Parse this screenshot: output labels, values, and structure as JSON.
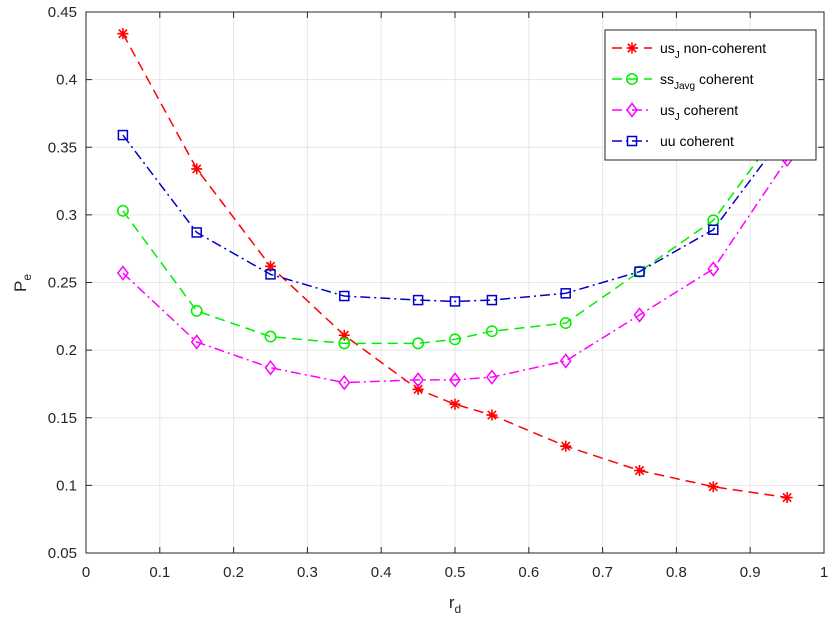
{
  "chart_data": {
    "type": "line",
    "xlabel": "r",
    "xlabel_sub": "d",
    "ylabel": "P",
    "ylabel_sub": "e",
    "xlim": [
      0,
      1
    ],
    "ylim": [
      0.05,
      0.45
    ],
    "xticks": [
      0,
      0.1,
      0.2,
      0.3,
      0.4,
      0.5,
      0.6,
      0.7,
      0.8,
      0.9,
      1
    ],
    "xtick_labels": [
      "0",
      "0.1",
      "0.2",
      "0.3",
      "0.4",
      "0.5",
      "0.6",
      "0.7",
      "0.8",
      "0.9",
      "1"
    ],
    "yticks": [
      0.05,
      0.1,
      0.15,
      0.2,
      0.25,
      0.3,
      0.35,
      0.4,
      0.45
    ],
    "ytick_labels": [
      "0.05",
      "0.1",
      "0.15",
      "0.2",
      "0.25",
      "0.3",
      "0.35",
      "0.4",
      "0.45"
    ],
    "grid": true,
    "legend_position": "top-right",
    "x": [
      0.05,
      0.15,
      0.25,
      0.35,
      0.45,
      0.5,
      0.55,
      0.65,
      0.75,
      0.85,
      0.95
    ],
    "series": [
      {
        "name": "us",
        "name_sub": "J",
        "name_suffix": " non-coherent",
        "color": "#ff0000",
        "marker": "asterisk",
        "dash": "dashed",
        "values": [
          0.434,
          0.334,
          0.262,
          0.211,
          0.171,
          0.16,
          0.152,
          0.129,
          0.111,
          0.099,
          0.091
        ]
      },
      {
        "name": "ss",
        "name_sub": "Javg",
        "name_suffix": " coherent",
        "color": "#00ee00",
        "marker": "circle",
        "dash": "dashed",
        "values": [
          0.303,
          0.229,
          0.21,
          0.205,
          0.205,
          0.208,
          0.214,
          0.22,
          0.258,
          0.296,
          0.37
        ]
      },
      {
        "name": "us",
        "name_sub": "J",
        "name_suffix": " coherent",
        "color": "#ff00ff",
        "marker": "diamond",
        "dash": "dashdot",
        "values": [
          0.257,
          0.206,
          0.187,
          0.176,
          0.178,
          0.178,
          0.18,
          0.192,
          0.226,
          0.26,
          0.341
        ]
      },
      {
        "name": "uu coherent",
        "name_sub": "",
        "name_suffix": "",
        "color": "#0000cc",
        "marker": "square",
        "dash": "dashdot",
        "values": [
          0.359,
          0.287,
          0.256,
          0.24,
          0.237,
          0.236,
          0.237,
          0.242,
          0.258,
          0.289,
          0.362
        ]
      }
    ]
  }
}
